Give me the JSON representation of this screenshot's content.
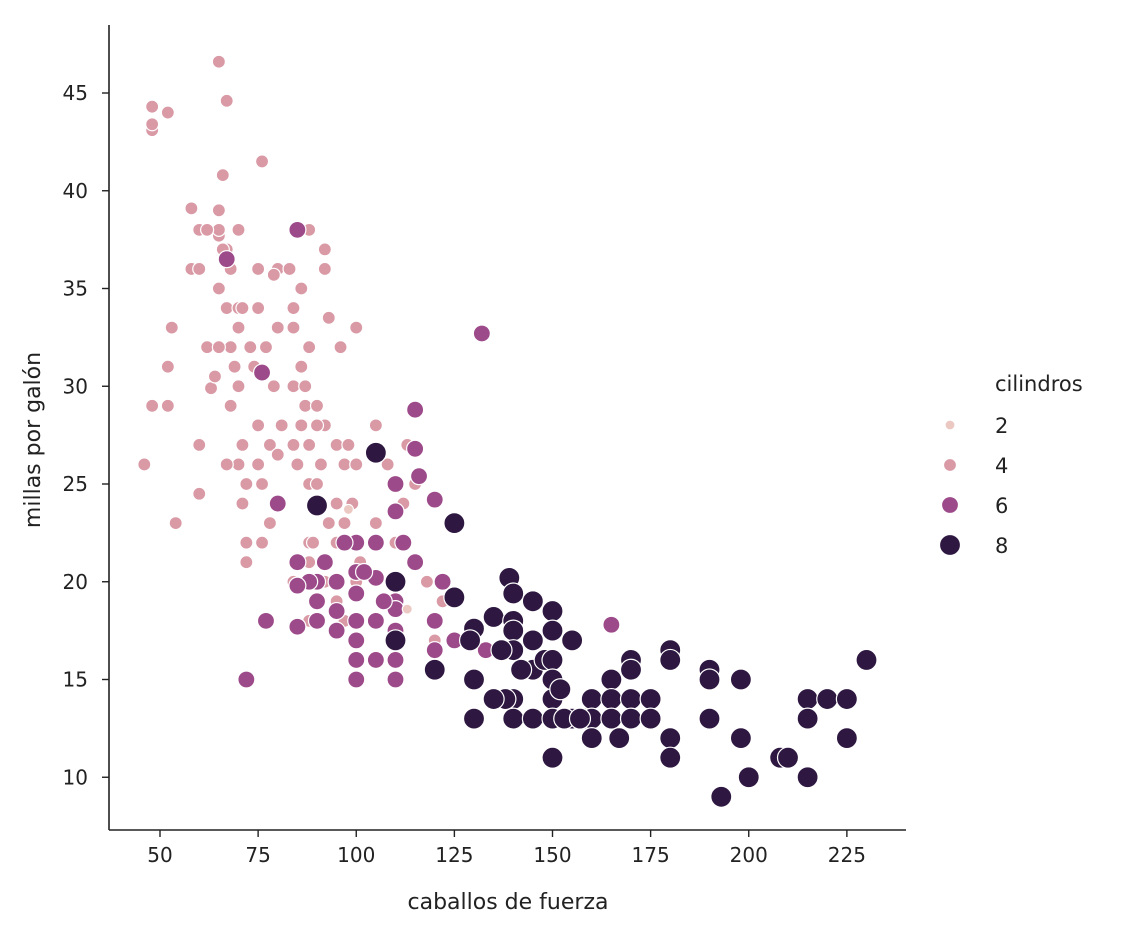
{
  "chart_data": {
    "type": "scatter",
    "xlabel": "caballos de fuerza",
    "ylabel": "millas por galón",
    "xlim": [
      37,
      240
    ],
    "ylim": [
      7.2,
      48.5
    ],
    "xticks": [
      50,
      75,
      100,
      125,
      150,
      175,
      200,
      225
    ],
    "yticks": [
      10,
      15,
      20,
      25,
      30,
      35,
      40,
      45
    ],
    "grid": false,
    "legend": {
      "title": "cilindros",
      "placement": "right",
      "entries": [
        {
          "label": "2",
          "color": "#ecc8c3",
          "cyl": 2
        },
        {
          "label": "4",
          "color": "#d99aa6",
          "cyl": 4
        },
        {
          "label": "6",
          "color": "#9c4a89",
          "cyl": 6
        },
        {
          "label": "8",
          "color": "#2e1841",
          "cyl": 8
        }
      ]
    },
    "series": [
      {
        "cyl": 4,
        "points": [
          [
            46,
            26
          ],
          [
            48,
            43.1
          ],
          [
            48,
            43.4
          ],
          [
            48,
            44.3
          ],
          [
            52,
            44
          ],
          [
            65,
            46.6
          ],
          [
            67,
            44.6
          ],
          [
            48,
            29
          ],
          [
            52,
            29
          ],
          [
            52,
            31
          ],
          [
            53,
            33
          ],
          [
            54,
            23
          ],
          [
            60,
            27
          ],
          [
            60,
            24.5
          ],
          [
            58,
            36
          ],
          [
            58,
            39.1
          ],
          [
            60,
            36
          ],
          [
            60,
            38
          ],
          [
            62,
            32
          ],
          [
            63,
            29.9
          ],
          [
            64,
            30.5
          ],
          [
            65,
            35
          ],
          [
            65,
            37.7
          ],
          [
            65,
            38
          ],
          [
            65,
            39
          ],
          [
            66,
            40.8
          ],
          [
            67,
            37
          ],
          [
            67,
            34
          ],
          [
            68,
            36
          ],
          [
            68,
            32
          ],
          [
            68,
            29
          ],
          [
            69,
            31
          ],
          [
            70,
            33
          ],
          [
            70,
            34
          ],
          [
            70,
            30
          ],
          [
            70,
            26
          ],
          [
            71,
            24
          ],
          [
            71,
            27
          ],
          [
            72,
            25
          ],
          [
            72,
            22
          ],
          [
            72,
            21
          ],
          [
            74,
            31
          ],
          [
            75,
            28
          ],
          [
            75,
            26
          ],
          [
            75,
            36
          ],
          [
            76,
            41.5
          ],
          [
            76,
            25
          ],
          [
            76,
            22
          ],
          [
            78,
            23
          ],
          [
            78,
            27
          ],
          [
            79,
            30
          ],
          [
            80,
            36
          ],
          [
            80,
            33
          ],
          [
            81,
            28
          ],
          [
            83,
            36
          ],
          [
            84,
            33
          ],
          [
            84,
            30
          ],
          [
            84,
            27
          ],
          [
            85,
            26
          ],
          [
            86,
            35
          ],
          [
            86,
            31
          ],
          [
            87,
            29
          ],
          [
            88,
            38
          ],
          [
            88,
            27
          ],
          [
            88,
            25
          ],
          [
            88,
            22
          ],
          [
            88,
            21
          ],
          [
            90,
            29
          ],
          [
            90,
            25
          ],
          [
            90,
            24
          ],
          [
            92,
            36
          ],
          [
            92,
            37
          ],
          [
            92,
            28
          ],
          [
            93,
            33.5
          ],
          [
            95,
            27
          ],
          [
            95,
            24
          ],
          [
            95,
            22
          ],
          [
            96,
            32
          ],
          [
            97,
            26
          ],
          [
            97,
            23
          ],
          [
            98,
            27
          ],
          [
            99,
            24
          ],
          [
            100,
            33
          ],
          [
            100,
            26
          ],
          [
            101,
            21
          ],
          [
            105,
            28
          ],
          [
            105,
            23
          ],
          [
            108,
            26
          ],
          [
            110,
            25
          ],
          [
            110,
            22
          ],
          [
            112,
            24
          ],
          [
            113,
            27
          ],
          [
            115,
            25
          ],
          [
            118,
            20
          ],
          [
            120,
            17
          ],
          [
            122,
            19
          ],
          [
            84,
            20
          ],
          [
            85,
            21
          ],
          [
            88,
            18
          ],
          [
            92,
            20
          ],
          [
            95,
            19
          ],
          [
            89,
            22
          ],
          [
            100,
            20
          ],
          [
            97,
            18
          ],
          [
            80,
            26.5
          ],
          [
            77,
            32
          ],
          [
            73,
            32
          ],
          [
            65,
            32
          ],
          [
            75,
            34
          ],
          [
            87,
            30
          ],
          [
            91,
            26
          ],
          [
            88,
            32
          ],
          [
            90,
            28
          ],
          [
            67,
            26
          ],
          [
            70,
            38
          ],
          [
            62,
            38
          ],
          [
            66,
            37
          ],
          [
            71,
            34
          ],
          [
            79,
            35.7
          ],
          [
            84,
            34
          ],
          [
            86,
            28
          ],
          [
            93,
            23
          ]
        ]
      },
      {
        "cyl": 6,
        "points": [
          [
            85,
            38
          ],
          [
            132,
            32.7
          ],
          [
            76,
            30.7
          ],
          [
            67,
            36.5
          ],
          [
            115,
            28.8
          ],
          [
            115,
            26.8
          ],
          [
            116,
            25.4
          ],
          [
            110,
            25
          ],
          [
            110,
            23.6
          ],
          [
            120,
            24.2
          ],
          [
            112,
            22
          ],
          [
            115,
            21
          ],
          [
            105,
            22
          ],
          [
            100,
            22
          ],
          [
            97,
            22
          ],
          [
            100,
            20.5
          ],
          [
            105,
            20.2
          ],
          [
            110,
            20
          ],
          [
            110,
            19
          ],
          [
            110,
            18.6
          ],
          [
            105,
            18
          ],
          [
            100,
            18
          ],
          [
            100,
            17
          ],
          [
            105,
            16
          ],
          [
            110,
            16
          ],
          [
            100,
            16
          ],
          [
            100,
            15
          ],
          [
            110,
            15
          ],
          [
            95,
            18.5
          ],
          [
            95,
            17.5
          ],
          [
            90,
            20
          ],
          [
            88,
            20
          ],
          [
            85,
            21
          ],
          [
            85,
            19.8
          ],
          [
            85,
            17.7
          ],
          [
            90,
            19
          ],
          [
            90,
            18
          ],
          [
            92,
            21
          ],
          [
            95,
            20
          ],
          [
            80,
            24
          ],
          [
            77,
            18
          ],
          [
            72,
            15
          ],
          [
            120,
            18
          ],
          [
            120,
            16.5
          ],
          [
            122,
            20
          ],
          [
            125,
            17
          ],
          [
            133,
            16.5
          ],
          [
            165,
            17.8
          ],
          [
            110,
            17.5
          ],
          [
            100,
            19.4
          ],
          [
            102,
            20.5
          ],
          [
            107,
            19
          ]
        ]
      },
      {
        "cyl": 2,
        "points": [
          [
            98,
            23.7
          ],
          [
            113,
            18.6
          ]
        ]
      },
      {
        "cyl": 8,
        "points": [
          [
            105,
            26.6
          ],
          [
            90,
            23.9
          ],
          [
            125,
            23
          ],
          [
            125,
            19.2
          ],
          [
            120,
            15.5
          ],
          [
            110,
            20
          ],
          [
            110,
            17
          ],
          [
            130,
            17.6
          ],
          [
            130,
            15
          ],
          [
            130,
            13
          ],
          [
            135,
            18.2
          ],
          [
            139,
            20.2
          ],
          [
            140,
            19.4
          ],
          [
            140,
            18
          ],
          [
            140,
            17.5
          ],
          [
            140,
            16.5
          ],
          [
            140,
            14
          ],
          [
            140,
            13
          ],
          [
            138,
            14
          ],
          [
            145,
            19
          ],
          [
            145,
            17
          ],
          [
            145,
            13
          ],
          [
            145,
            15.5
          ],
          [
            148,
            16
          ],
          [
            150,
            18.5
          ],
          [
            150,
            17.5
          ],
          [
            150,
            16
          ],
          [
            150,
            15
          ],
          [
            150,
            14
          ],
          [
            150,
            13
          ],
          [
            150,
            11
          ],
          [
            152,
            14.5
          ],
          [
            155,
            17
          ],
          [
            155,
            13
          ],
          [
            158,
            13
          ],
          [
            160,
            14
          ],
          [
            160,
            13
          ],
          [
            160,
            12
          ],
          [
            165,
            15
          ],
          [
            165,
            14
          ],
          [
            165,
            13
          ],
          [
            167,
            12
          ],
          [
            170,
            16
          ],
          [
            170,
            15.5
          ],
          [
            170,
            14
          ],
          [
            170,
            13
          ],
          [
            175,
            14
          ],
          [
            175,
            13
          ],
          [
            180,
            16.5
          ],
          [
            180,
            16
          ],
          [
            180,
            12
          ],
          [
            180,
            11
          ],
          [
            190,
            15.5
          ],
          [
            190,
            15
          ],
          [
            190,
            13
          ],
          [
            193,
            9
          ],
          [
            198,
            15
          ],
          [
            198,
            12
          ],
          [
            200,
            10
          ],
          [
            208,
            11
          ],
          [
            210,
            11
          ],
          [
            215,
            14
          ],
          [
            215,
            13
          ],
          [
            215,
            10
          ],
          [
            220,
            14
          ],
          [
            225,
            14
          ],
          [
            225,
            12
          ],
          [
            230,
            16
          ],
          [
            142,
            15.5
          ],
          [
            135,
            14
          ],
          [
            153,
            13
          ],
          [
            157,
            13
          ],
          [
            129,
            17
          ],
          [
            137,
            16.5
          ]
        ]
      }
    ]
  }
}
